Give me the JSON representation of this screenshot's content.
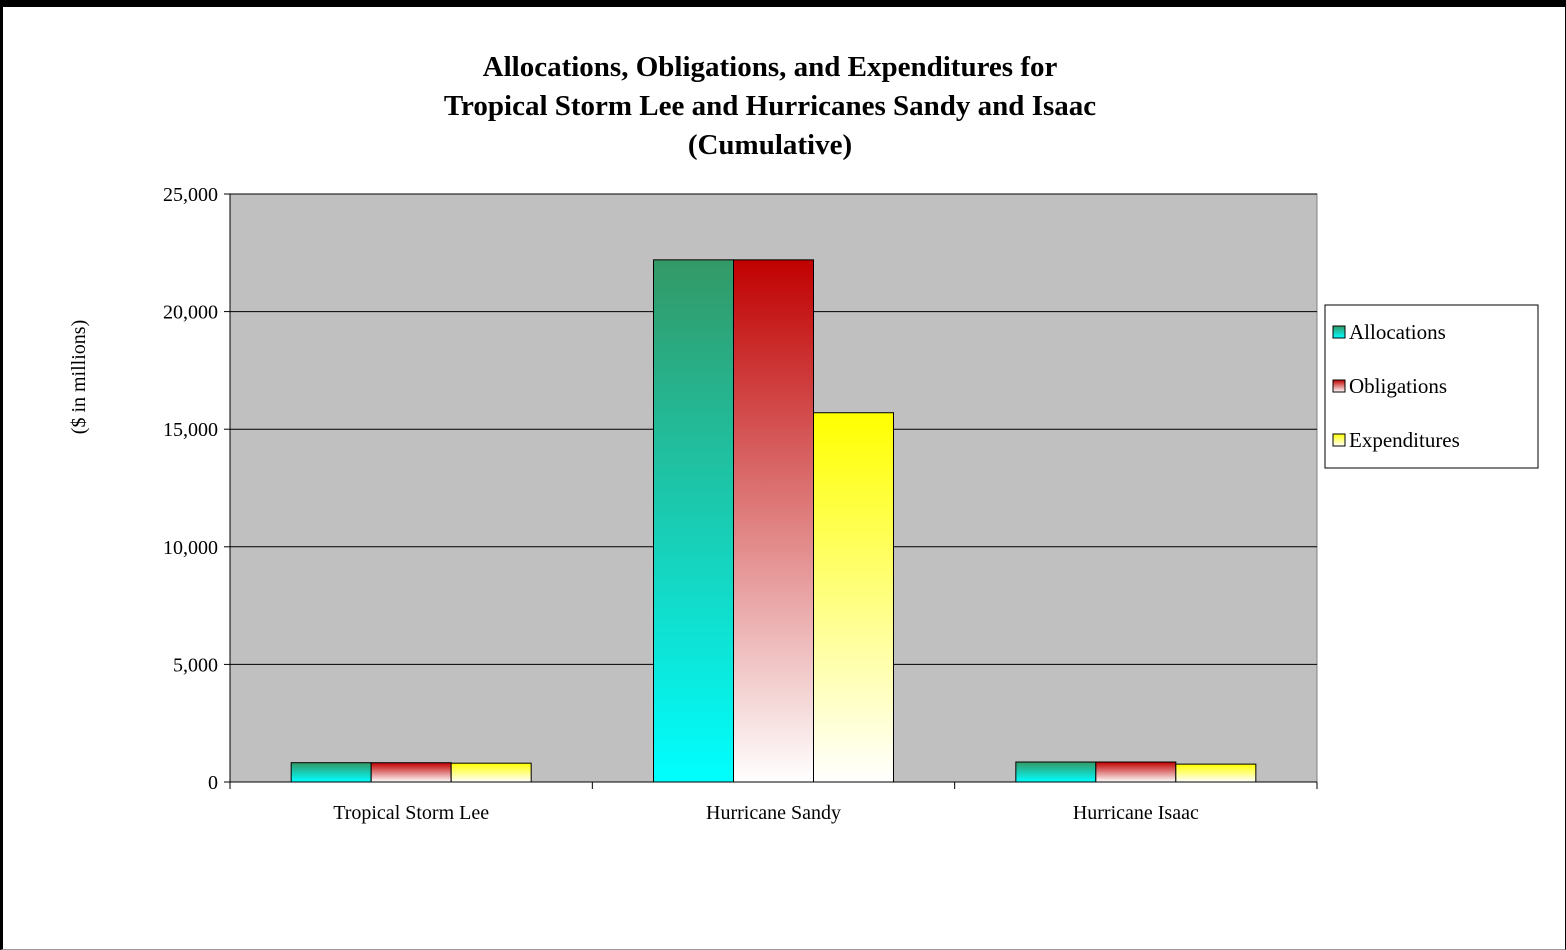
{
  "chart_data": {
    "type": "bar",
    "title_lines": [
      "Allocations, Obligations, and Expenditures for",
      "Tropical Storm Lee and Hurricanes Sandy and Isaac",
      "(Cumulative)"
    ],
    "ylabel": "($ in millions)",
    "xlabel": "",
    "ylim": [
      0,
      25000
    ],
    "yticks": [
      0,
      5000,
      10000,
      15000,
      20000,
      25000
    ],
    "ytick_labels": [
      "0",
      "5,000",
      "10,000",
      "15,000",
      "20,000",
      "25,000"
    ],
    "categories": [
      "Tropical Storm Lee",
      "Hurricane Sandy",
      "Hurricane Isaac"
    ],
    "series": [
      {
        "name": "Allocations",
        "values": [
          820,
          22200,
          850
        ]
      },
      {
        "name": "Obligations",
        "values": [
          820,
          22200,
          850
        ]
      },
      {
        "name": "Expenditures",
        "values": [
          800,
          15700,
          760
        ]
      }
    ],
    "grid": true,
    "legend_position": "right",
    "colors": {
      "plot_background": "#c0c0c0",
      "Allocations": {
        "top": "#339966",
        "bottom": "#00ffff"
      },
      "Obligations": {
        "top": "#c00000",
        "bottom": "#ffffff"
      },
      "Expenditures": {
        "top": "#ffff00",
        "bottom": "#ffffff"
      }
    }
  }
}
